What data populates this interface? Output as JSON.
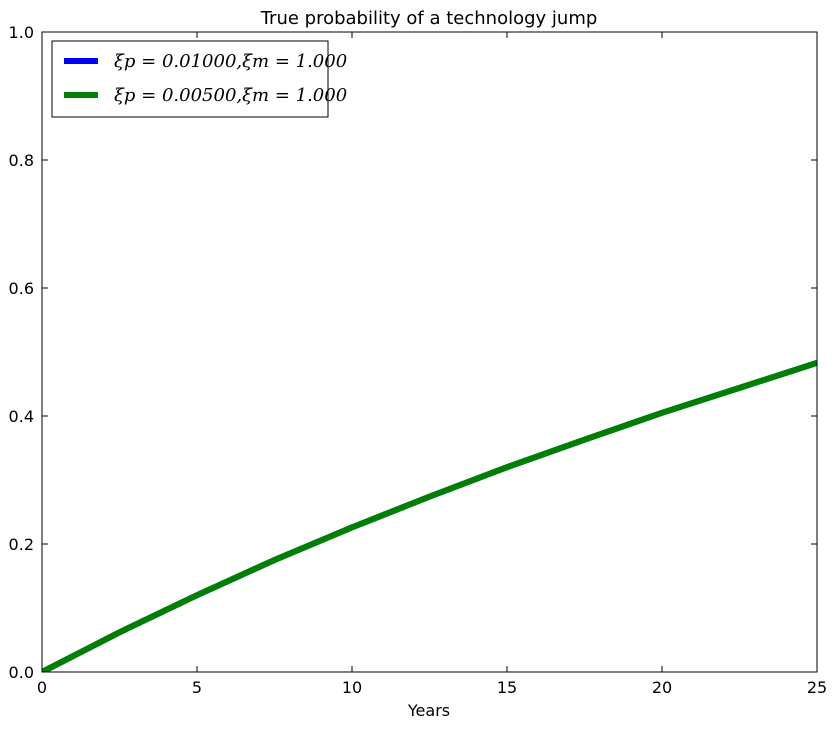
{
  "chart_data": {
    "type": "line",
    "title": "True probability of a technology jump",
    "xlabel": "Years",
    "ylabel": "",
    "xlim": [
      0,
      25
    ],
    "ylim": [
      0,
      1
    ],
    "xticks": [
      0,
      5,
      10,
      15,
      20,
      25
    ],
    "yticks": [
      0.0,
      0.2,
      0.4,
      0.6,
      0.8,
      1.0
    ],
    "xtick_labels": [
      "0",
      "5",
      "10",
      "15",
      "20",
      "25"
    ],
    "ytick_labels": [
      "0.0",
      "0.2",
      "0.4",
      "0.6",
      "0.8",
      "1.0"
    ],
    "grid": false,
    "legend_position": "top-left",
    "x": [
      0,
      2.5,
      5,
      7.5,
      10,
      12.5,
      15,
      17.5,
      20,
      22.5,
      25
    ],
    "series": [
      {
        "name": "ξp = 0.01000,ξm = 1.000",
        "color": "#0000ff",
        "values": [
          0.0,
          0.062,
          0.12,
          0.175,
          0.226,
          0.274,
          0.32,
          0.363,
          0.405,
          0.444,
          0.483
        ]
      },
      {
        "name": "ξp = 0.00500,ξm = 1.000",
        "color": "#008000",
        "values": [
          0.0,
          0.062,
          0.12,
          0.175,
          0.226,
          0.274,
          0.32,
          0.363,
          0.405,
          0.444,
          0.483
        ]
      }
    ]
  }
}
